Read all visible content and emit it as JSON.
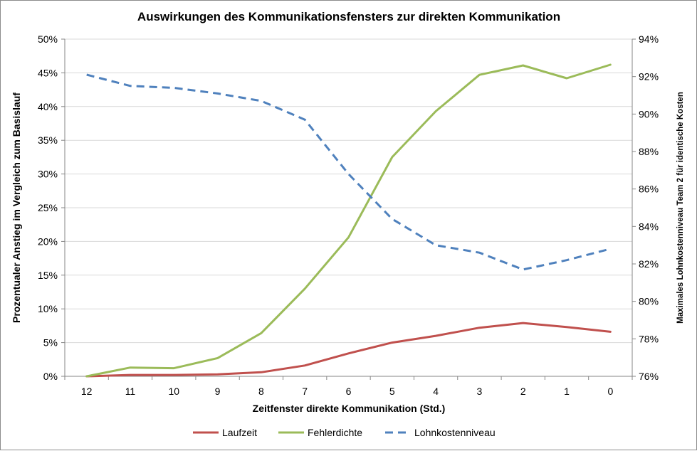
{
  "chart_data": {
    "type": "line",
    "title": "Auswirkungen  des Kommunikationsfensters zur direkten Kommunikation",
    "xlabel": "Zeitfenster  direkte Kommunikation (Std.)",
    "ylabel": "Prozentualer Anstieg im Vergleich zum  Basislauf",
    "ylabel_right": "Maximales Lohnkostenniveau Team 2 für identische Kosten",
    "categories": [
      "12",
      "11",
      "10",
      "9",
      "8",
      "7",
      "6",
      "5",
      "4",
      "3",
      "2",
      "1",
      "0"
    ],
    "y_ticks": [
      "0%",
      "5%",
      "10%",
      "15%",
      "20%",
      "25%",
      "30%",
      "35%",
      "40%",
      "45%",
      "50%"
    ],
    "y_right_ticks": [
      "76%",
      "78%",
      "80%",
      "82%",
      "84%",
      "86%",
      "88%",
      "90%",
      "92%",
      "94%"
    ],
    "ylim": [
      0,
      0.5
    ],
    "ylim_right": [
      0.76,
      0.94
    ],
    "grid": true,
    "legend_position": "bottom",
    "series": [
      {
        "name": "Laufzeit",
        "axis": "left",
        "color": "#c0504d",
        "dash": "solid",
        "values": [
          0.0,
          0.002,
          0.002,
          0.003,
          0.006,
          0.016,
          0.034,
          0.05,
          0.06,
          0.072,
          0.079,
          0.073,
          0.066
        ]
      },
      {
        "name": "Fehlerdichte",
        "axis": "left",
        "color": "#9bbb59",
        "dash": "solid",
        "values": [
          0.0,
          0.013,
          0.012,
          0.027,
          0.064,
          0.13,
          0.206,
          0.325,
          0.393,
          0.447,
          0.461,
          0.442,
          0.462
        ]
      },
      {
        "name": "Lohnkostenniveau",
        "axis": "right",
        "color": "#4f81bd",
        "dash": "dashed",
        "values": [
          0.921,
          0.915,
          0.914,
          0.911,
          0.907,
          0.897,
          0.868,
          0.844,
          0.83,
          0.826,
          0.817,
          0.822,
          0.828
        ]
      }
    ]
  }
}
